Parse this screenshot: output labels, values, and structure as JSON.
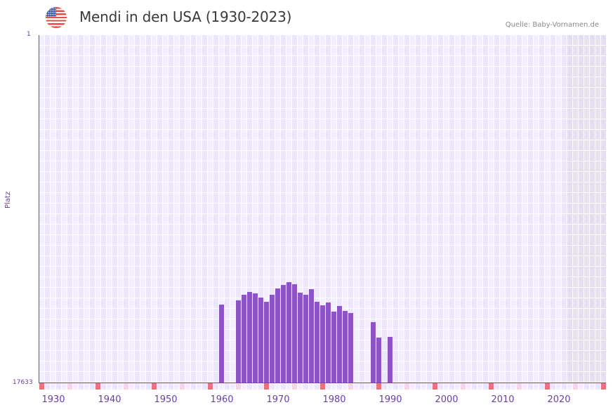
{
  "header": {
    "title": "Mendi in den USA (1930-2023)",
    "source": "Quelle: Baby-Vornamen.de",
    "flag_icon": "us-flag-icon"
  },
  "colors": {
    "bar": "#8c54c6",
    "axis": "#7a3fa8",
    "grid_bg_a": "#f3effc",
    "grid_bg_b": "#ece7f8",
    "future_shade": "#e3dfee",
    "decade_marker": "#e5747c",
    "halfdecade_marker": "#f4d8e0"
  },
  "chart_data": {
    "type": "bar",
    "title": "Mendi in den USA (1930-2023)",
    "xlabel": "",
    "ylabel": "Platz",
    "y_inverted": true,
    "ylim": [
      1,
      17633
    ],
    "y_ticks": [
      "1",
      "17633"
    ],
    "x_ticks": [
      "1930",
      "1940",
      "1950",
      "1960",
      "1970",
      "1980",
      "1990",
      "2000",
      "2010",
      "2020"
    ],
    "x_range": [
      1928,
      2028
    ],
    "grid": true,
    "series": [
      {
        "name": "Platz",
        "x": [
          1960,
          1963,
          1964,
          1965,
          1966,
          1967,
          1968,
          1969,
          1970,
          1971,
          1972,
          1973,
          1974,
          1975,
          1976,
          1977,
          1978,
          1979,
          1980,
          1981,
          1982,
          1983,
          1987,
          1988,
          1990
        ],
        "values": [
          13678,
          13464,
          13179,
          13037,
          13108,
          13322,
          13536,
          13179,
          12859,
          12681,
          12539,
          12645,
          13073,
          13179,
          12894,
          13536,
          13714,
          13571,
          14034,
          13749,
          13999,
          14106,
          14569,
          15353,
          15317
        ]
      }
    ]
  }
}
